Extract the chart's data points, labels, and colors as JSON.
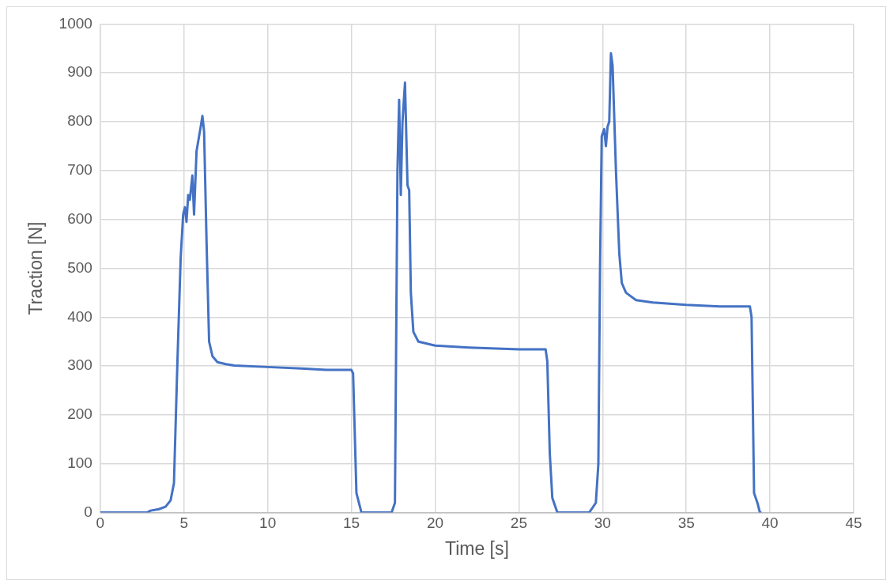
{
  "chart_data": {
    "type": "line",
    "xlabel": "Time [s]",
    "ylabel": "Traction [N]",
    "xlim": [
      0,
      45
    ],
    "xticks": [
      0,
      5,
      10,
      15,
      20,
      25,
      30,
      35,
      40,
      45
    ],
    "ylim": [
      0,
      1000
    ],
    "yticks": [
      0,
      100,
      200,
      300,
      400,
      500,
      600,
      700,
      800,
      900,
      1000
    ],
    "grid": true,
    "legend": false,
    "marker": "none",
    "line_style": "solid",
    "series": [
      {
        "color": "#4472c4",
        "x": [
          0,
          2.8,
          3.0,
          3.5,
          3.9,
          4.2,
          4.4,
          4.6,
          4.8,
          4.95,
          5.05,
          5.15,
          5.25,
          5.35,
          5.5,
          5.6,
          5.75,
          5.9,
          6.0,
          6.1,
          6.2,
          6.35,
          6.5,
          6.7,
          7.0,
          7.5,
          8,
          10,
          12,
          13.5,
          15.0,
          15.1,
          15.3,
          15.6,
          17.4,
          17.6,
          17.75,
          17.85,
          17.95,
          18.05,
          18.2,
          18.35,
          18.45,
          18.55,
          18.7,
          19.0,
          20,
          22,
          25,
          26.6,
          26.7,
          26.85,
          27.0,
          27.3,
          29.2,
          29.6,
          29.75,
          29.85,
          29.95,
          30.1,
          30.2,
          30.3,
          30.4,
          30.5,
          30.6,
          30.8,
          31.0,
          31.15,
          31.4,
          32,
          33,
          35,
          37,
          38.8,
          38.9,
          39.05,
          39.25,
          39.4,
          39.5
        ],
        "values": [
          0,
          0,
          4,
          7,
          12,
          25,
          60,
          300,
          520,
          610,
          625,
          595,
          650,
          640,
          690,
          610,
          740,
          770,
          790,
          812,
          780,
          550,
          350,
          320,
          308,
          304,
          301,
          298,
          295,
          292,
          292,
          285,
          40,
          0,
          0,
          20,
          700,
          845,
          650,
          800,
          880,
          670,
          660,
          450,
          370,
          350,
          342,
          338,
          334,
          334,
          310,
          120,
          30,
          0,
          0,
          20,
          100,
          500,
          770,
          785,
          750,
          790,
          800,
          940,
          915,
          700,
          530,
          470,
          450,
          435,
          430,
          425,
          422,
          422,
          400,
          40,
          20,
          0,
          0
        ]
      }
    ]
  }
}
